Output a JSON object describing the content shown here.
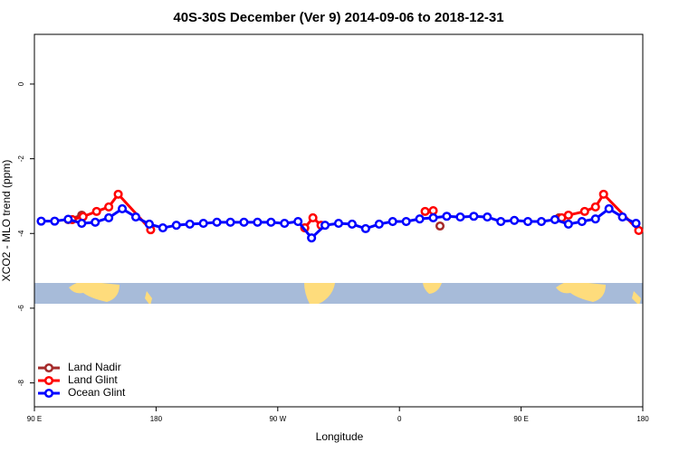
{
  "chart_data": {
    "type": "line",
    "title": "40S-30S December (Ver 9)   2014-09-06 to 2018-12-31",
    "x_label": "Longitude",
    "y_label": "XCO2 - MLO trend (ppm)",
    "xlim": [
      90,
      540
    ],
    "xticks": [
      {
        "value": 90,
        "label": "90 E"
      },
      {
        "value": 180,
        "label": "180"
      },
      {
        "value": 270,
        "label": "90 W"
      },
      {
        "value": 360,
        "label": "0"
      },
      {
        "value": 450,
        "label": "90 E"
      },
      {
        "value": 540,
        "label": "180"
      }
    ],
    "ylim": [
      -8.64,
      1.33
    ],
    "yticks": [
      0,
      -2,
      -4,
      -6,
      -8
    ],
    "legend": "bottom-left",
    "series": [
      {
        "name": "Land Nadir",
        "color": "#a52a2a",
        "x": [
          115,
          125,
          null,
          290,
          null,
          390,
          null,
          478
        ],
        "values": [
          -3.63,
          -3.51,
          null,
          -3.85,
          null,
          -3.8,
          null,
          -3.58
        ]
      },
      {
        "name": "Land Glint",
        "color": "#ff0000",
        "x": [
          118,
          126,
          136,
          145,
          152,
          176,
          null,
          290,
          296,
          302,
          null,
          379,
          385,
          null,
          480,
          485,
          497,
          505,
          511,
          537
        ],
        "values": [
          -3.63,
          -3.55,
          -3.41,
          -3.29,
          -2.95,
          -3.9,
          null,
          -3.85,
          -3.58,
          -3.78,
          null,
          -3.41,
          -3.39,
          null,
          -3.58,
          -3.51,
          -3.41,
          -3.29,
          -2.95,
          -3.92
        ]
      },
      {
        "name": "Ocean Glint",
        "color": "#0000ff",
        "x": [
          95,
          105,
          115,
          125,
          135,
          145,
          155,
          165,
          175,
          185,
          195,
          205,
          215,
          225,
          235,
          245,
          255,
          265,
          275,
          285,
          295,
          305,
          315,
          325,
          335,
          345,
          355,
          365,
          375,
          385,
          395,
          405,
          415,
          425,
          435,
          445,
          455,
          465,
          475,
          485,
          495,
          505,
          515,
          525,
          535
        ],
        "values": [
          -3.67,
          -3.67,
          -3.62,
          -3.73,
          -3.7,
          -3.58,
          -3.34,
          -3.56,
          -3.75,
          -3.85,
          -3.78,
          -3.75,
          -3.73,
          -3.7,
          -3.7,
          -3.7,
          -3.7,
          -3.7,
          -3.73,
          -3.68,
          -4.12,
          -3.78,
          -3.73,
          -3.75,
          -3.87,
          -3.75,
          -3.68,
          -3.68,
          -3.61,
          -3.58,
          -3.54,
          -3.56,
          -3.54,
          -3.56,
          -3.68,
          -3.65,
          -3.68,
          -3.68,
          -3.63,
          -3.75,
          -3.68,
          -3.61,
          -3.34,
          -3.56,
          -3.73
        ]
      }
    ]
  }
}
